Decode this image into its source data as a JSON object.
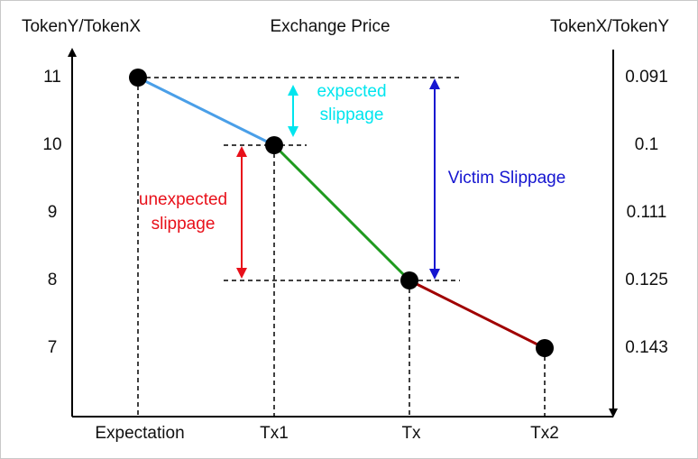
{
  "header": {
    "left_axis": "TokenY/TokenX",
    "title": "Exchange Price",
    "right_axis": "TokenX/TokenY"
  },
  "left_ticks": [
    "11",
    "10",
    "9",
    "8",
    "7"
  ],
  "right_ticks": [
    "0.091",
    "0.1",
    "0.111",
    "0.125",
    "0.143"
  ],
  "columns": [
    "Expectation",
    "Tx1",
    "Tx",
    "Tx2"
  ],
  "annotations": {
    "expected": [
      "expected",
      "slippage"
    ],
    "unexpected": [
      "unexpected",
      "slippage"
    ],
    "victim": "Victim Slippage"
  }
}
